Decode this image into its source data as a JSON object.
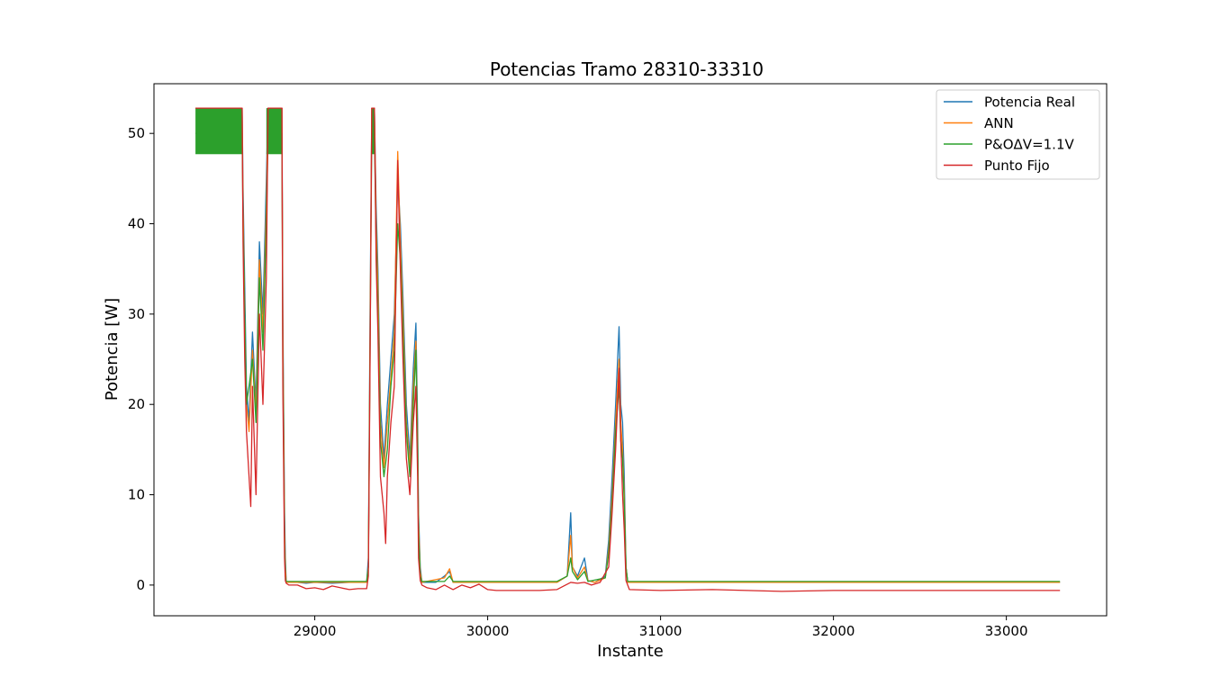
{
  "chart_data": {
    "type": "line",
    "title": "Potencias Tramo 28310-33310",
    "xlabel": "Instante",
    "ylabel": "Potencia [W]",
    "xlim": [
      28070,
      33580
    ],
    "ylim": [
      -3.4,
      55.5
    ],
    "xticks": [
      29000,
      30000,
      31000,
      32000,
      33000
    ],
    "yticks": [
      0,
      10,
      20,
      30,
      40,
      50
    ],
    "grid": false,
    "legend_position": "top-right",
    "series": [
      {
        "name": "Potencia Real",
        "color": "#1f77b4",
        "points": [
          [
            28310,
            52.8
          ],
          [
            28580,
            52.8
          ],
          [
            28585,
            44
          ],
          [
            28595,
            33
          ],
          [
            28605,
            22
          ],
          [
            28620,
            18
          ],
          [
            28640,
            28
          ],
          [
            28660,
            20
          ],
          [
            28680,
            38
          ],
          [
            28700,
            30
          ],
          [
            28720,
            45
          ],
          [
            28730,
            52.8
          ],
          [
            28810,
            52.8
          ],
          [
            28815,
            30
          ],
          [
            28825,
            8
          ],
          [
            28830,
            3
          ],
          [
            28835,
            0.3
          ],
          [
            28900,
            0.3
          ],
          [
            28950,
            0.2
          ],
          [
            29000,
            0.3
          ],
          [
            29100,
            0.2
          ],
          [
            29200,
            0.3
          ],
          [
            29300,
            0.3
          ],
          [
            29310,
            3
          ],
          [
            29320,
            30
          ],
          [
            29330,
            52.8
          ],
          [
            29345,
            52.8
          ],
          [
            29355,
            42
          ],
          [
            29365,
            35
          ],
          [
            29380,
            20
          ],
          [
            29400,
            14
          ],
          [
            29420,
            20
          ],
          [
            29440,
            25
          ],
          [
            29460,
            30
          ],
          [
            29480,
            45
          ],
          [
            29495,
            40
          ],
          [
            29510,
            32
          ],
          [
            29530,
            20
          ],
          [
            29550,
            14
          ],
          [
            29570,
            24
          ],
          [
            29585,
            29
          ],
          [
            29595,
            18
          ],
          [
            29600,
            8
          ],
          [
            29610,
            2
          ],
          [
            29620,
            0.3
          ],
          [
            29700,
            0.3
          ],
          [
            29750,
            1
          ],
          [
            29780,
            1.5
          ],
          [
            29800,
            0.3
          ],
          [
            29900,
            0.3
          ],
          [
            30000,
            0.3
          ],
          [
            30100,
            0.3
          ],
          [
            30200,
            0.3
          ],
          [
            30300,
            0.3
          ],
          [
            30400,
            0.3
          ],
          [
            30460,
            1
          ],
          [
            30480,
            8
          ],
          [
            30490,
            2
          ],
          [
            30520,
            1
          ],
          [
            30560,
            3
          ],
          [
            30580,
            0.5
          ],
          [
            30620,
            0.3
          ],
          [
            30680,
            1
          ],
          [
            30700,
            5
          ],
          [
            30720,
            12
          ],
          [
            30740,
            20
          ],
          [
            30760,
            28.6
          ],
          [
            30770,
            20
          ],
          [
            30780,
            18
          ],
          [
            30790,
            12
          ],
          [
            30800,
            2
          ],
          [
            30810,
            0.3
          ],
          [
            31000,
            0.3
          ],
          [
            31500,
            0.3
          ],
          [
            32000,
            0.3
          ],
          [
            32500,
            0.3
          ],
          [
            33000,
            0.3
          ],
          [
            33310,
            0.3
          ]
        ]
      },
      {
        "name": "ANN",
        "color": "#ff7f0e",
        "points": [
          [
            28310,
            52.8
          ],
          [
            28580,
            52.8
          ],
          [
            28585,
            42
          ],
          [
            28595,
            30
          ],
          [
            28605,
            20
          ],
          [
            28620,
            17
          ],
          [
            28640,
            26
          ],
          [
            28660,
            19
          ],
          [
            28680,
            36
          ],
          [
            28700,
            28
          ],
          [
            28720,
            42
          ],
          [
            28730,
            52.8
          ],
          [
            28810,
            52.8
          ],
          [
            28815,
            28
          ],
          [
            28825,
            6
          ],
          [
            28830,
            2
          ],
          [
            28835,
            0.3
          ],
          [
            29000,
            0.3
          ],
          [
            29100,
            0.3
          ],
          [
            29200,
            0.3
          ],
          [
            29300,
            0.3
          ],
          [
            29310,
            2
          ],
          [
            29320,
            28
          ],
          [
            29330,
            52.8
          ],
          [
            29345,
            52.8
          ],
          [
            29355,
            40
          ],
          [
            29365,
            33
          ],
          [
            29380,
            18
          ],
          [
            29400,
            13
          ],
          [
            29420,
            18
          ],
          [
            29440,
            23
          ],
          [
            29460,
            28
          ],
          [
            29480,
            48
          ],
          [
            29495,
            38
          ],
          [
            29510,
            30
          ],
          [
            29530,
            18
          ],
          [
            29550,
            13
          ],
          [
            29570,
            22
          ],
          [
            29585,
            27
          ],
          [
            29595,
            16
          ],
          [
            29600,
            7
          ],
          [
            29610,
            1.5
          ],
          [
            29620,
            0.3
          ],
          [
            29750,
            0.8
          ],
          [
            29780,
            1.8
          ],
          [
            29800,
            0.3
          ],
          [
            30000,
            0.3
          ],
          [
            30400,
            0.3
          ],
          [
            30460,
            1
          ],
          [
            30480,
            5.5
          ],
          [
            30490,
            2
          ],
          [
            30520,
            0.8
          ],
          [
            30560,
            2
          ],
          [
            30580,
            0.5
          ],
          [
            30620,
            0.3
          ],
          [
            30680,
            0.8
          ],
          [
            30700,
            4
          ],
          [
            30720,
            10
          ],
          [
            30740,
            18
          ],
          [
            30760,
            25
          ],
          [
            30770,
            18
          ],
          [
            30780,
            15
          ],
          [
            30790,
            10
          ],
          [
            30800,
            2
          ],
          [
            30810,
            0.3
          ],
          [
            31000,
            0.3
          ],
          [
            32000,
            0.3
          ],
          [
            33000,
            0.3
          ],
          [
            33310,
            0.3
          ]
        ]
      },
      {
        "name": "P&OΔV=1.1V",
        "color": "#2ca02c",
        "band": [
          [
            28310,
            28580
          ],
          [
            28720,
            28810
          ],
          [
            29330,
            29345
          ]
        ],
        "band_range": [
          47.7,
          52.8
        ],
        "points": [
          [
            28310,
            50
          ],
          [
            28580,
            50
          ],
          [
            28585,
            40
          ],
          [
            28595,
            30
          ],
          [
            28605,
            20
          ],
          [
            28620,
            22
          ],
          [
            28640,
            25
          ],
          [
            28660,
            18
          ],
          [
            28680,
            34
          ],
          [
            28700,
            26
          ],
          [
            28720,
            40
          ],
          [
            28730,
            50
          ],
          [
            28810,
            50
          ],
          [
            28815,
            25
          ],
          [
            28825,
            5
          ],
          [
            28830,
            1
          ],
          [
            28835,
            0.4
          ],
          [
            29000,
            0.4
          ],
          [
            29100,
            0.4
          ],
          [
            29200,
            0.4
          ],
          [
            29300,
            0.4
          ],
          [
            29310,
            2
          ],
          [
            29320,
            26
          ],
          [
            29330,
            50
          ],
          [
            29345,
            50
          ],
          [
            29355,
            38
          ],
          [
            29365,
            30
          ],
          [
            29380,
            16
          ],
          [
            29400,
            12
          ],
          [
            29420,
            15
          ],
          [
            29440,
            22
          ],
          [
            29460,
            26
          ],
          [
            29480,
            40
          ],
          [
            29495,
            36
          ],
          [
            29510,
            28
          ],
          [
            29530,
            17
          ],
          [
            29550,
            12
          ],
          [
            29570,
            20
          ],
          [
            29585,
            26
          ],
          [
            29595,
            15
          ],
          [
            29600,
            6
          ],
          [
            29610,
            1
          ],
          [
            29620,
            0.4
          ],
          [
            29750,
            0.4
          ],
          [
            29780,
            1
          ],
          [
            29800,
            0.4
          ],
          [
            30000,
            0.4
          ],
          [
            30400,
            0.4
          ],
          [
            30460,
            1
          ],
          [
            30480,
            3
          ],
          [
            30490,
            1.5
          ],
          [
            30520,
            0.6
          ],
          [
            30560,
            1.5
          ],
          [
            30580,
            0.4
          ],
          [
            30680,
            0.8
          ],
          [
            30700,
            3.5
          ],
          [
            30720,
            9
          ],
          [
            30740,
            17
          ],
          [
            30760,
            22
          ],
          [
            30770,
            16
          ],
          [
            30780,
            14
          ],
          [
            30790,
            9
          ],
          [
            30800,
            2
          ],
          [
            30810,
            0.4
          ],
          [
            31000,
            0.4
          ],
          [
            32000,
            0.4
          ],
          [
            33000,
            0.4
          ],
          [
            33310,
            0.4
          ]
        ]
      },
      {
        "name": "Punto Fijo",
        "color": "#d62728",
        "points": [
          [
            28310,
            52.8
          ],
          [
            28580,
            52.8
          ],
          [
            28585,
            38
          ],
          [
            28595,
            25
          ],
          [
            28605,
            17
          ],
          [
            28620,
            12
          ],
          [
            28630,
            8.7
          ],
          [
            28640,
            22
          ],
          [
            28660,
            10
          ],
          [
            28680,
            30
          ],
          [
            28700,
            20
          ],
          [
            28720,
            34
          ],
          [
            28730,
            52.8
          ],
          [
            28810,
            52.8
          ],
          [
            28815,
            22
          ],
          [
            28825,
            3
          ],
          [
            28830,
            0.5
          ],
          [
            28835,
            0.2
          ],
          [
            28850,
            0
          ],
          [
            28900,
            0
          ],
          [
            28950,
            -0.4
          ],
          [
            29000,
            -0.3
          ],
          [
            29050,
            -0.5
          ],
          [
            29100,
            -0.1
          ],
          [
            29150,
            -0.3
          ],
          [
            29200,
            -0.5
          ],
          [
            29250,
            -0.4
          ],
          [
            29300,
            -0.4
          ],
          [
            29310,
            1
          ],
          [
            29320,
            25
          ],
          [
            29330,
            52.8
          ],
          [
            29345,
            52.8
          ],
          [
            29355,
            36
          ],
          [
            29365,
            28
          ],
          [
            29380,
            12
          ],
          [
            29400,
            8
          ],
          [
            29410,
            4.6
          ],
          [
            29420,
            12
          ],
          [
            29440,
            18
          ],
          [
            29460,
            22
          ],
          [
            29480,
            47
          ],
          [
            29495,
            35
          ],
          [
            29510,
            25
          ],
          [
            29530,
            14
          ],
          [
            29550,
            10
          ],
          [
            29570,
            18
          ],
          [
            29585,
            22
          ],
          [
            29595,
            12
          ],
          [
            29600,
            3
          ],
          [
            29610,
            0.5
          ],
          [
            29620,
            0
          ],
          [
            29650,
            -0.3
          ],
          [
            29700,
            -0.5
          ],
          [
            29750,
            0
          ],
          [
            29780,
            -0.3
          ],
          [
            29800,
            -0.5
          ],
          [
            29850,
            0
          ],
          [
            29900,
            -0.3
          ],
          [
            29950,
            0.1
          ],
          [
            30000,
            -0.5
          ],
          [
            30050,
            -0.6
          ],
          [
            30100,
            -0.6
          ],
          [
            30200,
            -0.6
          ],
          [
            30300,
            -0.6
          ],
          [
            30400,
            -0.5
          ],
          [
            30450,
            0
          ],
          [
            30480,
            0.3
          ],
          [
            30520,
            0.2
          ],
          [
            30560,
            0.3
          ],
          [
            30600,
            0
          ],
          [
            30650,
            0.3
          ],
          [
            30700,
            2
          ],
          [
            30720,
            8
          ],
          [
            30740,
            15
          ],
          [
            30760,
            24
          ],
          [
            30770,
            16
          ],
          [
            30780,
            10
          ],
          [
            30790,
            6
          ],
          [
            30800,
            0.5
          ],
          [
            30820,
            -0.5
          ],
          [
            31000,
            -0.6
          ],
          [
            31300,
            -0.5
          ],
          [
            31500,
            -0.6
          ],
          [
            31700,
            -0.7
          ],
          [
            32000,
            -0.6
          ],
          [
            32300,
            -0.6
          ],
          [
            32600,
            -0.6
          ],
          [
            33000,
            -0.6
          ],
          [
            33310,
            -0.6
          ]
        ]
      }
    ]
  }
}
